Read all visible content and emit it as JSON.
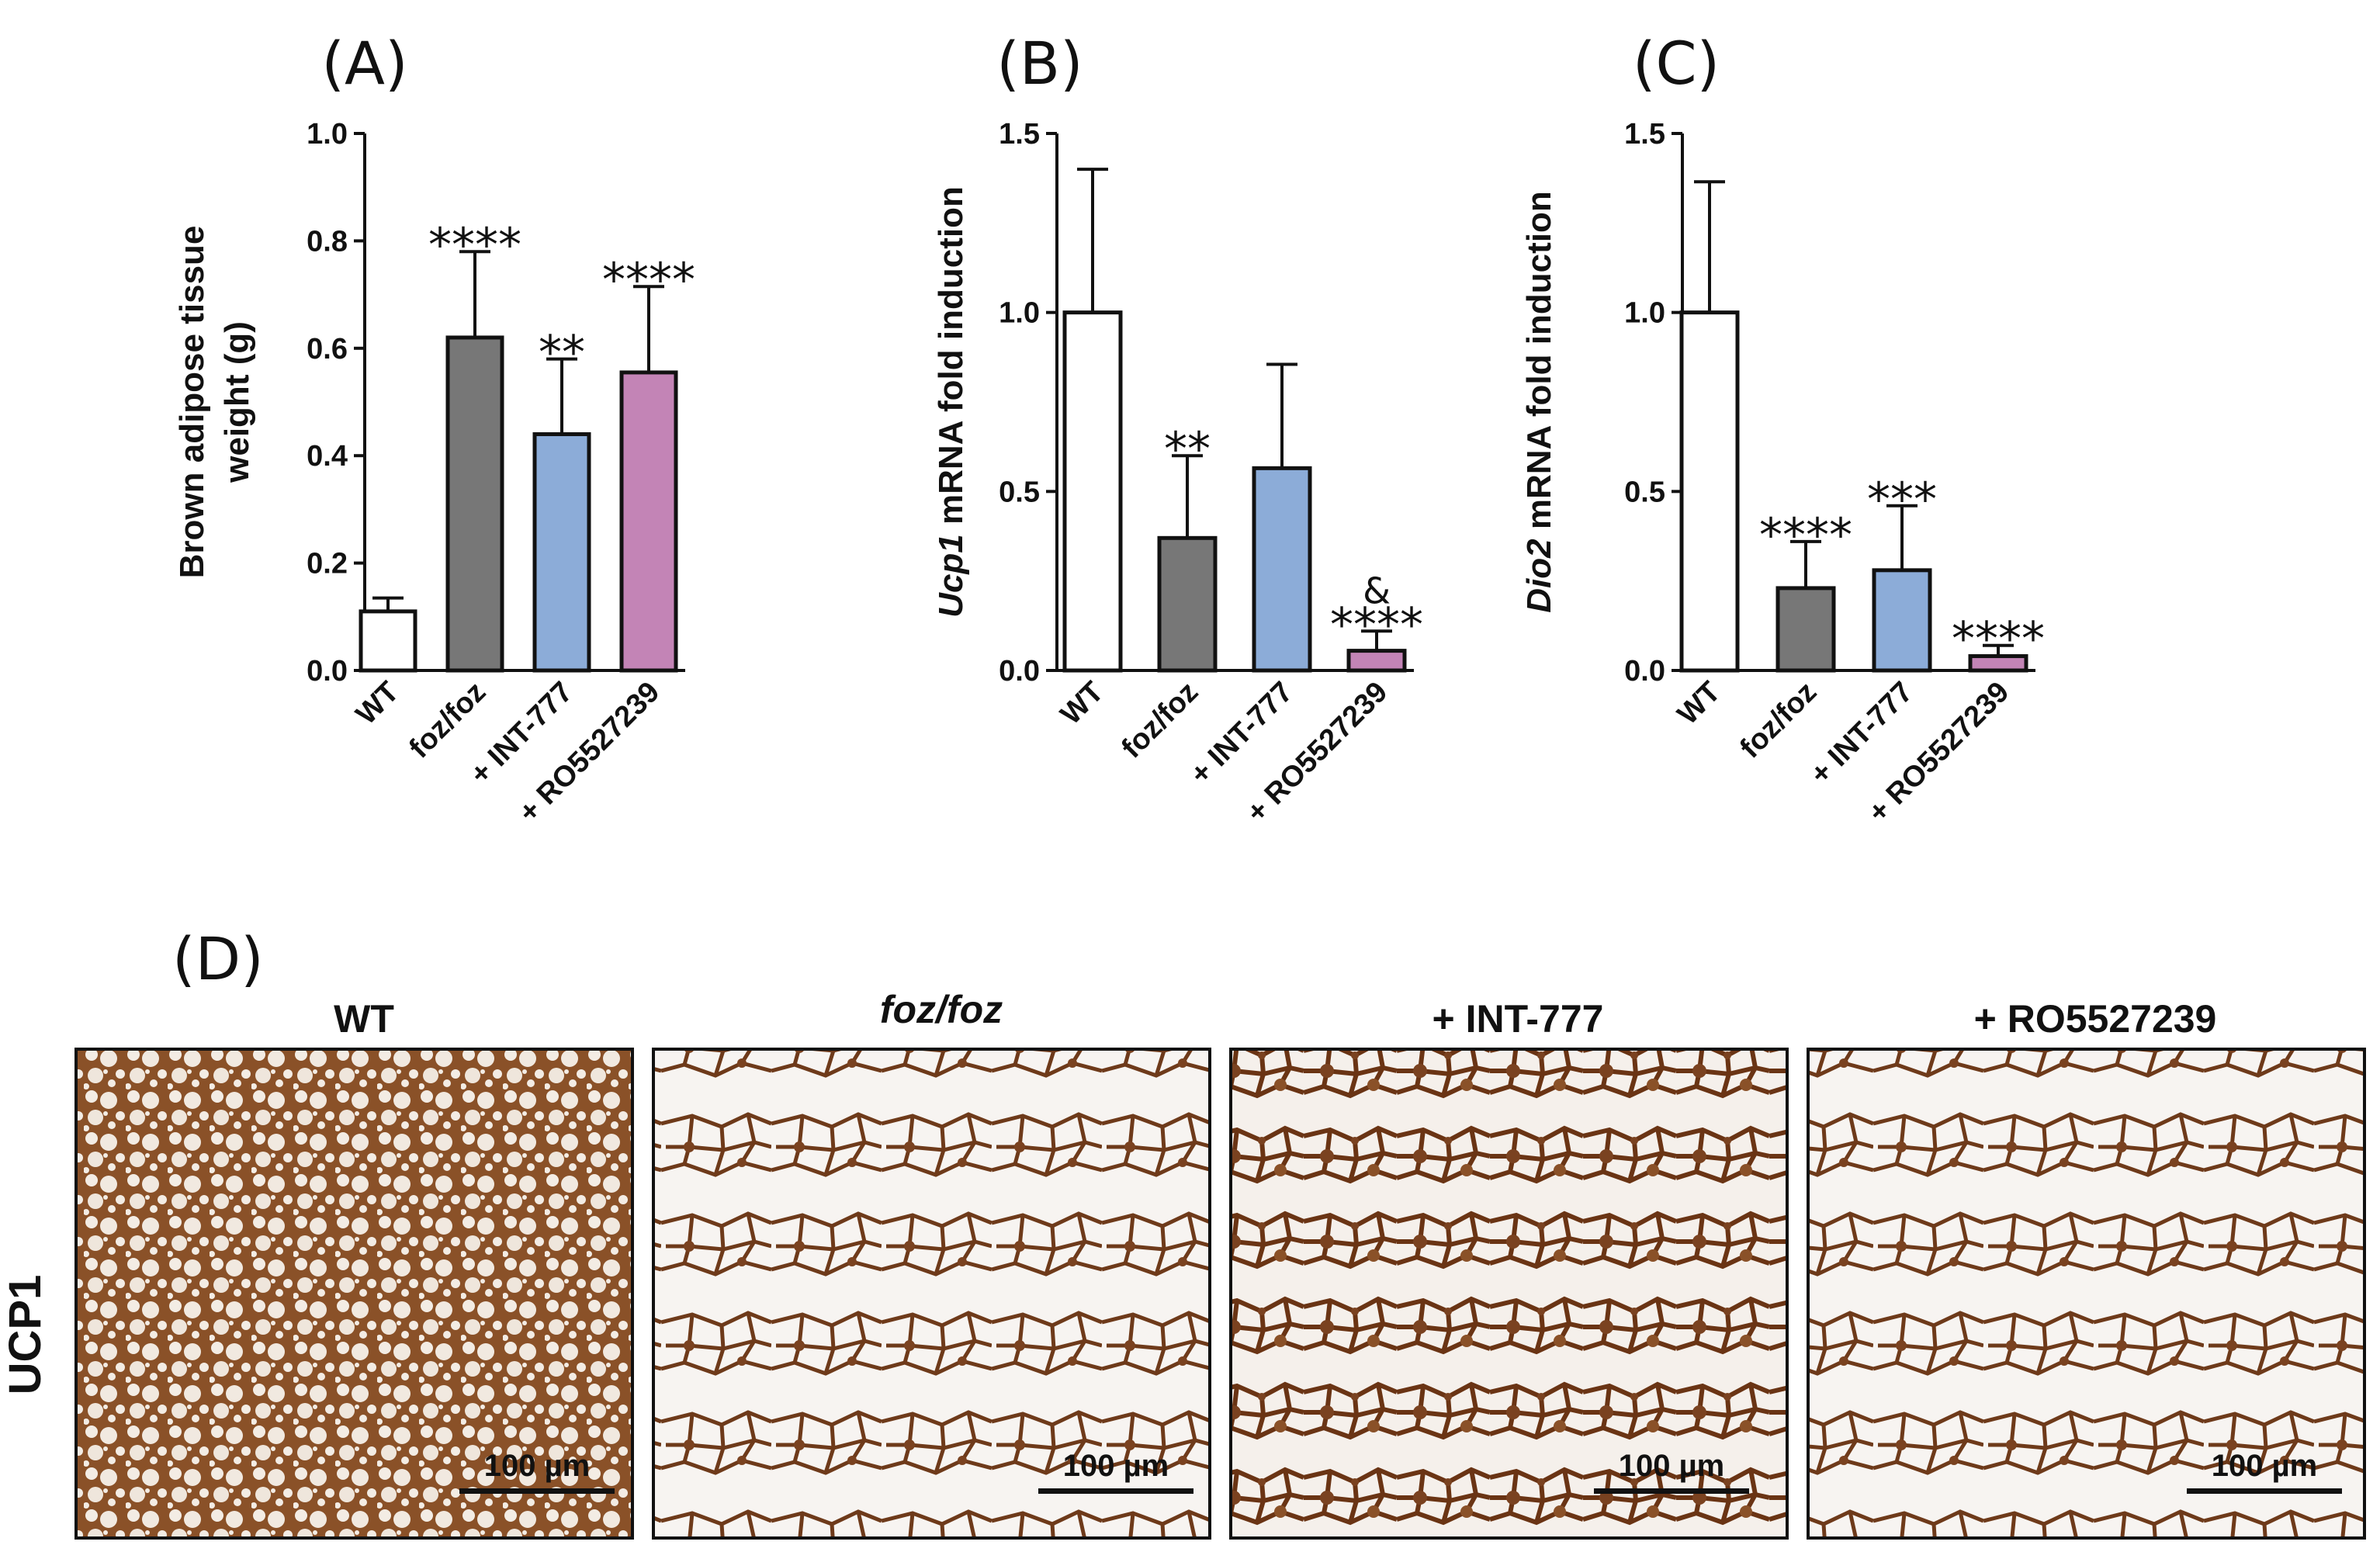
{
  "chart_data": [
    {
      "type": "bar",
      "panel": "(A)",
      "ylabel_lines": [
        "Brown adipose tissue",
        "weight (g)"
      ],
      "ylabel_italic": "",
      "ylabel_rest": "",
      "categories": [
        "WT",
        "foz/foz",
        "+ INT-777",
        "+ RO5527239"
      ],
      "values": [
        0.11,
        0.62,
        0.44,
        0.555
      ],
      "errors": [
        0.025,
        0.16,
        0.14,
        0.16
      ],
      "colors": [
        "#ffffff",
        "#777777",
        "#8cacd8",
        "#c384b6"
      ],
      "annotations": [
        "",
        "****",
        "**",
        "****"
      ],
      "extra_annotations": [
        "",
        "",
        "",
        ""
      ],
      "ylim": [
        0,
        1.0
      ],
      "yticks": [
        0.0,
        0.2,
        0.4,
        0.6,
        0.8,
        1.0
      ],
      "ytick_labels": [
        "0.0",
        "0.2",
        "0.4",
        "0.6",
        "0.8",
        "1.0"
      ]
    },
    {
      "type": "bar",
      "panel": "(B)",
      "ylabel_lines": [],
      "ylabel_italic": "Ucp1",
      "ylabel_rest": " mRNA fold induction",
      "categories": [
        "WT",
        "foz/foz",
        "+ INT-777",
        "+ RO5527239"
      ],
      "values": [
        1.0,
        0.37,
        0.565,
        0.055
      ],
      "errors": [
        0.4,
        0.23,
        0.29,
        0.055
      ],
      "colors": [
        "#ffffff",
        "#777777",
        "#8cacd8",
        "#c384b6"
      ],
      "annotations": [
        "",
        "**",
        "",
        "****"
      ],
      "extra_annotations": [
        "",
        "",
        "",
        "&"
      ],
      "ylim": [
        0,
        1.5
      ],
      "yticks": [
        0.0,
        0.5,
        1.0,
        1.5
      ],
      "ytick_labels": [
        "0.0",
        "0.5",
        "1.0",
        "1.5"
      ]
    },
    {
      "type": "bar",
      "panel": "(C)",
      "ylabel_lines": [],
      "ylabel_italic": "Dio2",
      "ylabel_rest": " mRNA fold induction",
      "categories": [
        "WT",
        "foz/foz",
        "+ INT-777",
        "+ RO5527239"
      ],
      "values": [
        1.0,
        0.23,
        0.28,
        0.04
      ],
      "errors": [
        0.365,
        0.13,
        0.18,
        0.03
      ],
      "colors": [
        "#ffffff",
        "#777777",
        "#8cacd8",
        "#c384b6"
      ],
      "annotations": [
        "",
        "****",
        "***",
        "****"
      ],
      "extra_annotations": [
        "",
        "",
        "",
        ""
      ],
      "ylim": [
        0,
        1.5
      ],
      "yticks": [
        0.0,
        0.5,
        1.0,
        1.5
      ],
      "ytick_labels": [
        "0.0",
        "0.5",
        "1.0",
        "1.5"
      ]
    }
  ],
  "panel_d": {
    "label": "(D)",
    "row_label": "UCP1",
    "scale_bar_text": "100 µm",
    "images": [
      {
        "title": "WT",
        "title_italic": false,
        "stain": "dense"
      },
      {
        "title": "foz/foz",
        "title_italic": true,
        "stain": "sparse"
      },
      {
        "title": "+ INT-777",
        "title_italic": false,
        "stain": "medium"
      },
      {
        "title": "+ RO5527239",
        "title_italic": false,
        "stain": "sparse"
      }
    ]
  },
  "colors": {
    "stain": "#6e3a1a",
    "stain_light": "#a2623a",
    "tissue_bg": "#f6f1ec"
  }
}
